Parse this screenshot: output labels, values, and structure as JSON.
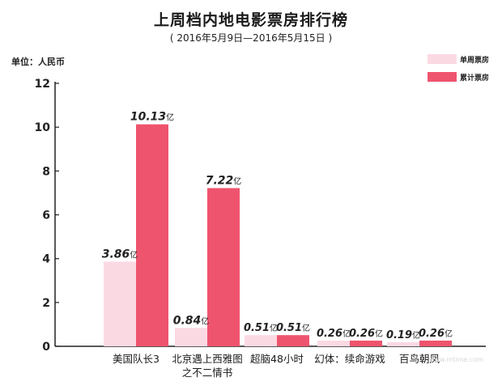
{
  "chart_data": {
    "type": "bar",
    "title": "上周档内地电影票房排行榜",
    "subtitle": "( 2016年5月9日—2016年5月15日 )",
    "unit_label": "单位：人民币",
    "categories": [
      [
        "美国队长3"
      ],
      [
        "北京遇上西雅图",
        "之不二情书"
      ],
      [
        "超脑48小时"
      ],
      [
        "幻体：续命游戏"
      ],
      [
        "百鸟朝凤"
      ]
    ],
    "series": [
      {
        "name": "单周票房",
        "color": "#fbd9e2",
        "values": [
          3.86,
          0.84,
          0.51,
          0.26,
          0.19
        ],
        "labels": [
          "3.86",
          "0.84",
          "0.51",
          "0.26",
          "0.19"
        ]
      },
      {
        "name": "累计票房",
        "color": "#ef546f",
        "values": [
          10.13,
          7.22,
          0.51,
          0.26,
          0.26
        ],
        "labels": [
          "10.13",
          "7.22",
          "0.51",
          "0.26",
          "0.26"
        ]
      }
    ],
    "value_suffix": "亿",
    "ylim": [
      0,
      12
    ],
    "yticks": [
      0,
      2,
      4,
      6,
      8,
      10,
      12
    ],
    "legend_position": "top-right",
    "grid": false
  },
  "watermark": "www.mtime.com"
}
